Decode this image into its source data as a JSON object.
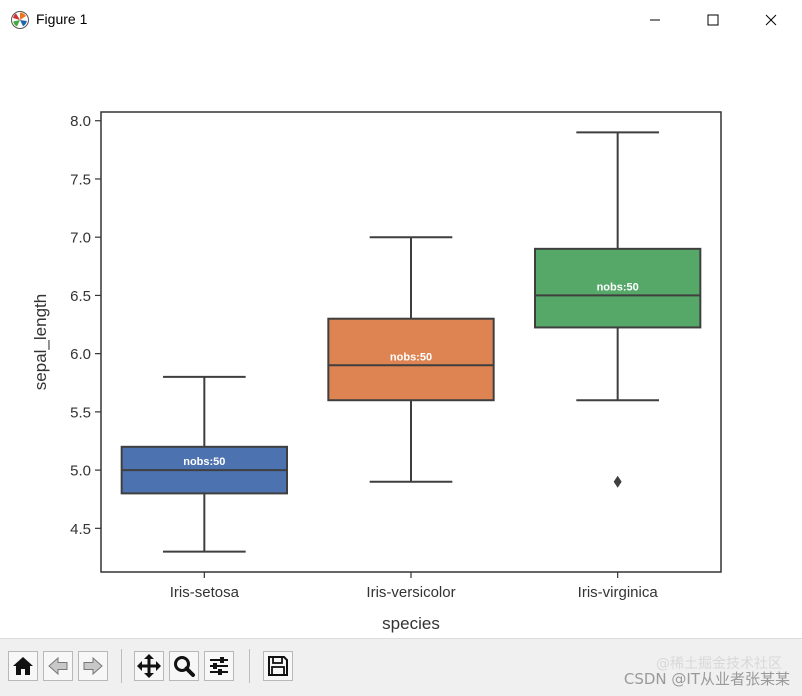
{
  "window": {
    "title": "Figure 1",
    "icon": "matplotlib-logo-icon",
    "controls": {
      "minimize": "minimize-icon",
      "maximize": "maximize-icon",
      "close": "close-icon"
    }
  },
  "chart_data": {
    "type": "box",
    "title": "",
    "xlabel": "species",
    "ylabel": "sepal_length",
    "categories": [
      "Iris-setosa",
      "Iris-versicolor",
      "Iris-virginica"
    ],
    "ylim": [
      4.125,
      8.075
    ],
    "yticks": [
      "4.5",
      "5.0",
      "5.5",
      "6.0",
      "6.5",
      "7.0",
      "7.5",
      "8.0"
    ],
    "grid": false,
    "legend": "none",
    "boxes": [
      {
        "category": "Iris-setosa",
        "whisker_low": 4.3,
        "q1": 4.8,
        "median": 5.0,
        "q3": 5.2,
        "whisker_high": 5.8,
        "outliers": [],
        "color": "#4c72b0",
        "annotation": "nobs:50"
      },
      {
        "category": "Iris-versicolor",
        "whisker_low": 4.9,
        "q1": 5.6,
        "median": 5.9,
        "q3": 6.3,
        "whisker_high": 7.0,
        "outliers": [],
        "color": "#dd8452",
        "annotation": "nobs:50"
      },
      {
        "category": "Iris-virginica",
        "whisker_low": 5.6,
        "q1": 6.225,
        "median": 6.5,
        "q3": 6.9,
        "whisker_high": 7.9,
        "outliers": [
          4.9
        ],
        "color": "#55a868",
        "annotation": "nobs:50"
      }
    ]
  },
  "toolbar": {
    "buttons": [
      {
        "name": "home-button",
        "icon": "home-icon"
      },
      {
        "name": "back-button",
        "icon": "arrow-left-icon"
      },
      {
        "name": "forward-button",
        "icon": "arrow-right-icon"
      },
      {
        "name": "pan-button",
        "icon": "move-icon"
      },
      {
        "name": "zoom-button",
        "icon": "magnifier-icon"
      },
      {
        "name": "configure-subplots-button",
        "icon": "sliders-icon"
      },
      {
        "name": "save-button",
        "icon": "floppy-disk-icon"
      }
    ]
  },
  "watermark": "CSDN @IT从业者张某某",
  "watermark_faint": "@稀土掘金技术社区"
}
